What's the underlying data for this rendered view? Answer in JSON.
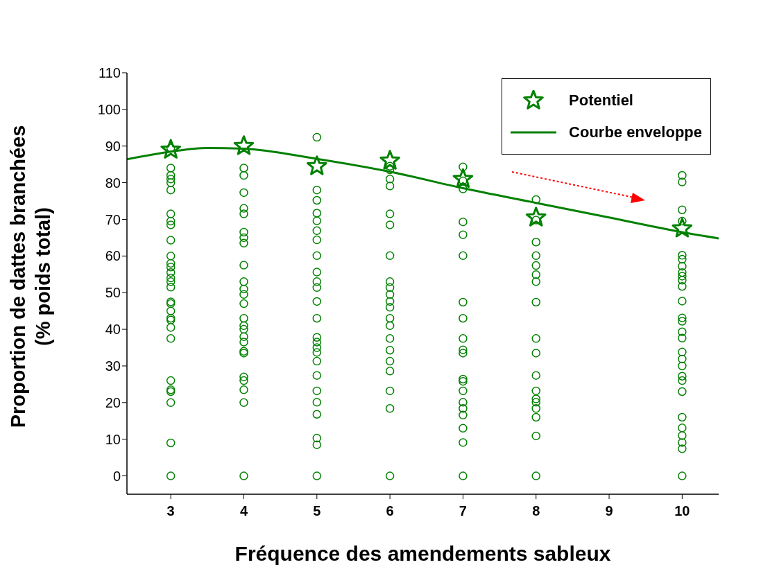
{
  "chart_data": {
    "type": "scatter",
    "xlabel": "Fréquence des amendements sableux",
    "ylabel": "Proportion de dattes branchées\n(% poids total)",
    "xlim": [
      2.4,
      10.5
    ],
    "xticks": [
      3,
      4,
      5,
      6,
      7,
      8,
      9,
      10
    ],
    "ylim": [
      -5,
      110
    ],
    "yticks": [
      0,
      10,
      20,
      30,
      40,
      50,
      60,
      70,
      80,
      90,
      100,
      110
    ],
    "grid": false,
    "legend": "top right",
    "series": [
      {
        "type": "scatter",
        "marker": "circle",
        "color": "#008000",
        "x": [
          3,
          3,
          3,
          3,
          3,
          3,
          3,
          3,
          3,
          3,
          3,
          3,
          3,
          3,
          3,
          3,
          3,
          3,
          3,
          3,
          3,
          3,
          3,
          3,
          3,
          3,
          3,
          3,
          3,
          3,
          4,
          4,
          4,
          4,
          4,
          4,
          4,
          4,
          4,
          4,
          4,
          4,
          4,
          4,
          4,
          4,
          4,
          4,
          4,
          4,
          4,
          4,
          4,
          4,
          4,
          5,
          5,
          5,
          5,
          5,
          5,
          5,
          5,
          5,
          5,
          5,
          5,
          5,
          5,
          5,
          5,
          5,
          5,
          5,
          5,
          5,
          5,
          5,
          5,
          5,
          6,
          6,
          6,
          6,
          6,
          6,
          6,
          6,
          6,
          6,
          6,
          6,
          6,
          6,
          6,
          6,
          6,
          6,
          6,
          6,
          6,
          7,
          7,
          7,
          7,
          7,
          7,
          7,
          7,
          7,
          7,
          7,
          7,
          7,
          7,
          7,
          7,
          7,
          7,
          7,
          7,
          8,
          8,
          8,
          8,
          8,
          8,
          8,
          8,
          8,
          8,
          8,
          8,
          8,
          8,
          8,
          8,
          8,
          8,
          10,
          10,
          10,
          10,
          10,
          10,
          10,
          10,
          10,
          10,
          10,
          10,
          10,
          10,
          10,
          10,
          10,
          10,
          10,
          10,
          10,
          10,
          10,
          10,
          10,
          10,
          10,
          10
        ],
        "values": [
          89.5,
          84,
          82,
          81,
          80,
          78,
          71.5,
          69.5,
          68.5,
          64.3,
          60,
          58,
          57,
          55.5,
          54,
          53,
          51.5,
          47.5,
          47,
          45,
          43,
          42.5,
          40.5,
          37.5,
          26,
          23.5,
          23,
          20,
          9,
          0,
          84,
          82,
          77.3,
          73,
          71.5,
          66.5,
          65,
          63.5,
          57.5,
          53,
          51,
          49.5,
          47,
          43,
          41,
          40,
          38,
          36.5,
          34,
          33.5,
          27,
          26,
          23.5,
          20,
          0,
          92.4,
          78,
          75.2,
          71.7,
          69.6,
          66.9,
          64.4,
          60.1,
          55.6,
          53,
          51.4,
          47.6,
          43,
          37.8,
          36.5,
          35,
          33.7,
          31.3,
          27.4,
          23.2,
          20.1,
          16.8,
          10.3,
          8.5,
          0,
          84.5,
          83.5,
          81,
          79.1,
          71.5,
          68.5,
          60.1,
          53,
          51.4,
          49.5,
          47.6,
          46,
          43,
          41,
          37.5,
          34.3,
          31.3,
          28.6,
          23.2,
          18.4,
          0,
          84.3,
          80.5,
          78.3,
          69.3,
          65.8,
          60.1,
          47.4,
          43,
          37.5,
          34.4,
          33.5,
          26.4,
          25.8,
          23.2,
          20.1,
          18.4,
          16.6,
          13,
          9.1,
          0,
          75.4,
          69.8,
          63.8,
          60.1,
          57.4,
          54.9,
          53,
          47.4,
          37.5,
          33.5,
          27.4,
          23.2,
          21,
          20.1,
          18.4,
          16,
          10.9,
          0,
          82,
          80.2,
          72.6,
          69.5,
          60.2,
          59.1,
          57.2,
          55.5,
          54.5,
          53.4,
          51.7,
          47.7,
          43.1,
          42.2,
          39.3,
          37.6,
          33.8,
          31.9,
          30,
          27.2,
          26,
          23,
          16,
          13.1,
          11,
          9.1,
          7.4,
          0
        ]
      },
      {
        "type": "scatter",
        "name": "Potentiel",
        "marker": "star",
        "color": "#008000",
        "x": [
          3,
          4,
          5,
          6,
          7,
          8,
          10
        ],
        "values": [
          89,
          90,
          84.5,
          86,
          81,
          70.5,
          67.5
        ]
      },
      {
        "type": "line",
        "name": "Courbe enveloppe",
        "marker": "none",
        "line_style": "solid",
        "color": "#008000",
        "x": [
          2.4,
          3,
          3.5,
          4,
          5,
          6,
          7,
          8,
          9,
          10,
          10.5
        ],
        "values": [
          86.4,
          88.5,
          89.5,
          89.3,
          86.5,
          83,
          78.5,
          74.5,
          70.5,
          66.5,
          64.8
        ]
      }
    ]
  }
}
